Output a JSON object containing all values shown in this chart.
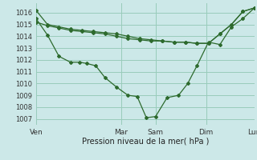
{
  "background_color": "#cce8e8",
  "grid_color": "#99ccbb",
  "line_color": "#2d6a2d",
  "marker_color": "#2d6a2d",
  "xlabel": "Pression niveau de la mer( hPa )",
  "ylim": [
    1006.5,
    1016.8
  ],
  "yticks": [
    1007,
    1008,
    1009,
    1010,
    1011,
    1012,
    1013,
    1014,
    1015,
    1016
  ],
  "xtick_labels": [
    "Ven",
    "Mar",
    "Sam",
    "Dim",
    "Lun"
  ],
  "xtick_positions": [
    0,
    37,
    52,
    74,
    95
  ],
  "total_points": 96,
  "series1_x": [
    0,
    5,
    10,
    15,
    20,
    25,
    30,
    35,
    40,
    45,
    50,
    55,
    60,
    65,
    70,
    75,
    80,
    85,
    90,
    95
  ],
  "series1_y": [
    1016.2,
    1015.0,
    1014.8,
    1014.6,
    1014.5,
    1014.4,
    1014.3,
    1014.2,
    1014.0,
    1013.8,
    1013.7,
    1013.6,
    1013.5,
    1013.5,
    1013.4,
    1013.4,
    1014.2,
    1015.0,
    1016.1,
    1016.4
  ],
  "series2_x": [
    0,
    5,
    10,
    15,
    20,
    25,
    30,
    35,
    40,
    45,
    50,
    55,
    60,
    65,
    70,
    75,
    80,
    85,
    90,
    95
  ],
  "series2_y": [
    1015.2,
    1014.9,
    1014.7,
    1014.5,
    1014.4,
    1014.3,
    1014.2,
    1014.0,
    1013.8,
    1013.7,
    1013.6,
    1013.6,
    1013.5,
    1013.5,
    1013.4,
    1013.4,
    1014.2,
    1015.0,
    1016.1,
    1016.4
  ],
  "series3_x": [
    0,
    5,
    10,
    15,
    19,
    22,
    26,
    30,
    35,
    40,
    44,
    48,
    52,
    57,
    62,
    66,
    70,
    75,
    80,
    85,
    90,
    95
  ],
  "series3_y": [
    1015.5,
    1014.1,
    1012.3,
    1011.8,
    1011.8,
    1011.7,
    1011.5,
    1010.5,
    1009.7,
    1009.0,
    1008.9,
    1007.1,
    1007.2,
    1008.8,
    1009.0,
    1010.0,
    1011.5,
    1013.5,
    1013.3,
    1014.8,
    1015.5,
    1016.4
  ],
  "vline_x": [
    37,
    52,
    74,
    95
  ]
}
